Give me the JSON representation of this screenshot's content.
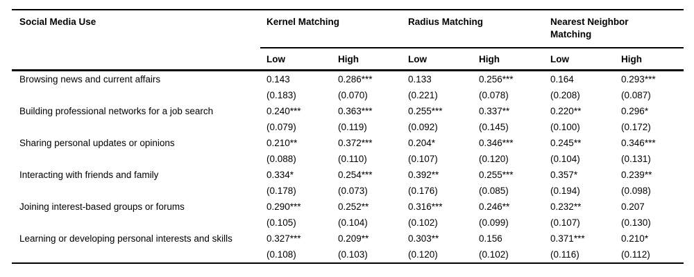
{
  "table": {
    "row_header": "Social Media Use",
    "groups": [
      {
        "label": "Kernel Matching"
      },
      {
        "label": "Radius Matching"
      },
      {
        "label": "Nearest Neighbor Matching"
      }
    ],
    "subheaders": [
      "Low",
      "High",
      "Low",
      "High",
      "Low",
      "High"
    ],
    "rows": [
      {
        "label": "Browsing news and current affairs",
        "coefs": [
          "0.143",
          "0.286***",
          "0.133",
          "0.256***",
          "0.164",
          "0.293***"
        ],
        "ses": [
          "(0.183)",
          "(0.070)",
          "(0.221)",
          "(0.078)",
          "(0.208)",
          "(0.087)"
        ]
      },
      {
        "label": "Building professional networks for a job search",
        "coefs": [
          "0.240***",
          "0.363***",
          "0.255***",
          "0.337**",
          "0.220**",
          "0.296*"
        ],
        "ses": [
          "(0.079)",
          "(0.119)",
          "(0.092)",
          "(0.145)",
          "(0.100)",
          "(0.172)"
        ]
      },
      {
        "label": "Sharing personal updates or opinions",
        "coefs": [
          "0.210**",
          "0.372***",
          "0.204*",
          "0.346***",
          "0.245**",
          "0.346***"
        ],
        "ses": [
          "(0.088)",
          "(0.110)",
          "(0.107)",
          "(0.120)",
          "(0.104)",
          "(0.131)"
        ]
      },
      {
        "label": "Interacting with friends and family",
        "coefs": [
          "0.334*",
          "0.254***",
          "0.392**",
          "0.255***",
          "0.357*",
          "0.239**"
        ],
        "ses": [
          "(0.178)",
          "(0.073)",
          "(0.176)",
          "(0.085)",
          "(0.194)",
          "(0.098)"
        ]
      },
      {
        "label": "Joining interest-based groups or forums",
        "coefs": [
          "0.290***",
          "0.252**",
          "0.316***",
          "0.246**",
          "0.232**",
          "0.207"
        ],
        "ses": [
          "(0.105)",
          "(0.104)",
          "(0.102)",
          "(0.099)",
          "(0.107)",
          "(0.130)"
        ]
      },
      {
        "label": "Learning or developing personal interests and skills",
        "coefs": [
          "0.327***",
          "0.209**",
          "0.303**",
          "0.156",
          "0.371***",
          "0.210*"
        ],
        "ses": [
          "(0.108)",
          "(0.103)",
          "(0.120)",
          "(0.102)",
          "(0.116)",
          "(0.112)"
        ]
      }
    ]
  },
  "colors": {
    "text": "#000000",
    "background": "#ffffff",
    "rule": "#000000"
  }
}
